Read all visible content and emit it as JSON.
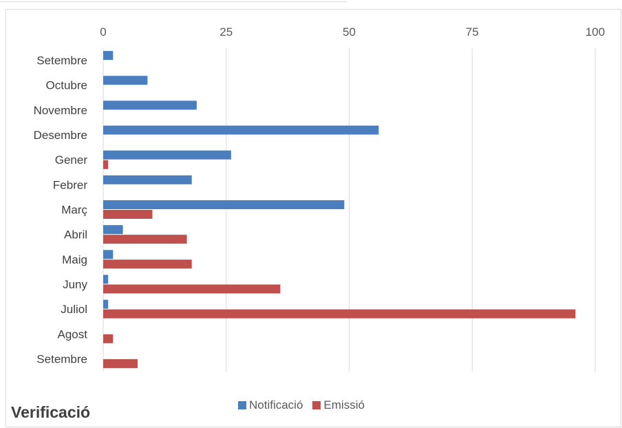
{
  "chart_data": {
    "type": "bar",
    "orientation": "horizontal",
    "title": "Verificació",
    "categories": [
      "Setembre",
      "Octubre",
      "Novembre",
      "Desembre",
      "Gener",
      "Febrer",
      "Març",
      "Abril",
      "Maig",
      "Juny",
      "Juliol",
      "Agost",
      "Setembre"
    ],
    "series": [
      {
        "name": "Notificació",
        "color": "#4a7ebf",
        "values": [
          2,
          9,
          19,
          56,
          26,
          18,
          49,
          4,
          2,
          1,
          1,
          0,
          0
        ]
      },
      {
        "name": "Emissió",
        "color": "#c0504d",
        "values": [
          0,
          0,
          0,
          0,
          1,
          0,
          10,
          17,
          18,
          36,
          96,
          2,
          7
        ]
      }
    ],
    "xlim": [
      0,
      100
    ],
    "xticks": [
      "0",
      "25",
      "50",
      "75",
      "100"
    ],
    "xaxis_position": "top",
    "grid": true,
    "legend_position": "bottom"
  }
}
